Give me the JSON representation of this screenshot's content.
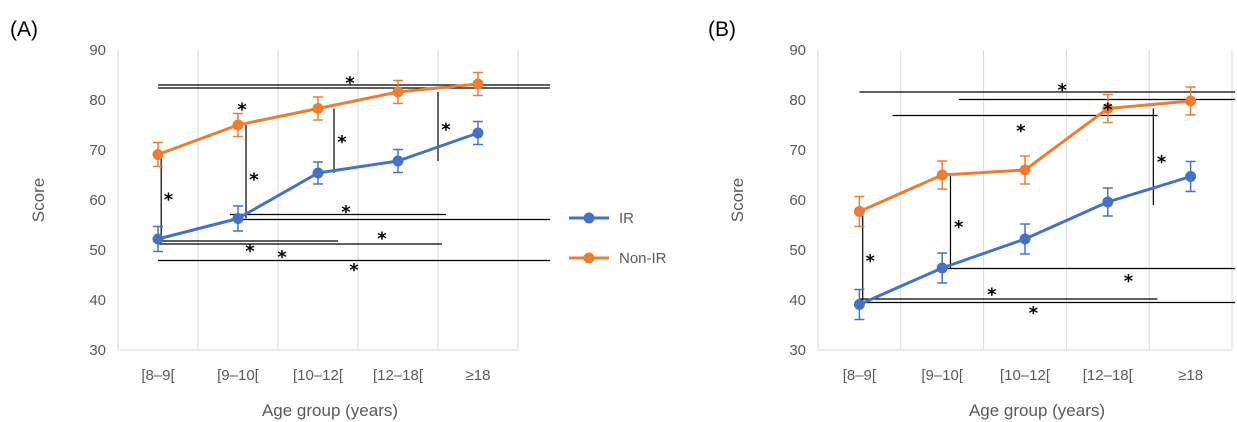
{
  "chart_data": [
    {
      "panel": "(A)",
      "type": "line",
      "categories": [
        "[8–9[",
        "[9–10[",
        "[10–12[",
        "[12–18[",
        "≥18"
      ],
      "xlabel": "Age group (years)",
      "ylabel": "Score",
      "ylim": [
        30,
        90
      ],
      "yticks": [
        30,
        40,
        50,
        60,
        70,
        80,
        90
      ],
      "grid": "vertical",
      "series": [
        {
          "name": "IR",
          "color": "#4472C4",
          "values": [
            52.2,
            56.3,
            65.4,
            67.8,
            73.4
          ],
          "errors": [
            2.5,
            2.5,
            2.2,
            2.3,
            2.3
          ]
        },
        {
          "name": "Non-IR",
          "color": "#ED7D31",
          "values": [
            69.1,
            75.0,
            78.3,
            81.6,
            83.2
          ],
          "errors": [
            2.4,
            2.3,
            2.3,
            2.3,
            2.3
          ]
        }
      ],
      "significance": {
        "marker": "*",
        "horizontal": [
          {
            "y": 83.0,
            "from": 0,
            "to": 4.9
          },
          {
            "y": 82.4,
            "from": 0,
            "to": 4.9
          },
          {
            "y": 57.1,
            "from": 0.9,
            "to": 3.6
          },
          {
            "y": 56.1,
            "from": 1.0,
            "to": 4.9
          },
          {
            "y": 51.8,
            "from": 0,
            "to": 2.25
          },
          {
            "y": 51.2,
            "from": 0,
            "to": 3.55
          },
          {
            "y": 47.9,
            "from": 0,
            "to": 4.9
          }
        ],
        "vertical": [
          {
            "x": 0.04,
            "from": 52.2,
            "to": 69.1
          },
          {
            "x": 1.1,
            "from": 56.3,
            "to": 75.0
          },
          {
            "x": 2.2,
            "from": 65.4,
            "to": 78.3
          },
          {
            "x": 3.5,
            "from": 67.8,
            "to": 81.6
          }
        ],
        "stars": [
          {
            "x": 2.4,
            "y": 83.8
          },
          {
            "x": 1.05,
            "y": 78.5
          },
          {
            "x": 2.3,
            "y": 72.0
          },
          {
            "x": 3.6,
            "y": 74.5
          },
          {
            "x": 0.13,
            "y": 60.5
          },
          {
            "x": 1.2,
            "y": 64.5
          },
          {
            "x": 2.35,
            "y": 58.0
          },
          {
            "x": 2.8,
            "y": 52.7
          },
          {
            "x": 1.15,
            "y": 50.2
          },
          {
            "x": 1.55,
            "y": 49.0
          },
          {
            "x": 2.45,
            "y": 46.4
          }
        ]
      }
    },
    {
      "panel": "(B)",
      "type": "line",
      "categories": [
        "[8–9[",
        "[9–10[",
        "[10–12[",
        "[12–18[",
        "≥18"
      ],
      "xlabel": "Age group (years)",
      "ylabel": "Score",
      "ylim": [
        30,
        90
      ],
      "yticks": [
        30,
        40,
        50,
        60,
        70,
        80,
        90
      ],
      "grid": "vertical",
      "series": [
        {
          "name": "IR",
          "color": "#4472C4",
          "values": [
            39.1,
            46.4,
            52.2,
            59.6,
            64.7
          ],
          "errors": [
            3.0,
            3.0,
            3.0,
            2.8,
            3.0
          ]
        },
        {
          "name": "Non-IR",
          "color": "#ED7D31",
          "values": [
            57.7,
            65.0,
            66.0,
            78.3,
            79.8
          ],
          "errors": [
            3.0,
            2.8,
            2.8,
            2.8,
            2.8
          ]
        }
      ],
      "significance": {
        "marker": "*",
        "horizontal": [
          {
            "y": 81.6,
            "from": 0,
            "to": 4.9
          },
          {
            "y": 80.1,
            "from": 1.2,
            "to": 4.9
          },
          {
            "y": 76.9,
            "from": 0.4,
            "to": 3.6
          },
          {
            "y": 46.3,
            "from": 1.0,
            "to": 4.9
          },
          {
            "y": 40.2,
            "from": 0,
            "to": 3.6
          },
          {
            "y": 39.5,
            "from": 0,
            "to": 4.9
          }
        ],
        "vertical": [
          {
            "x": 0.04,
            "from": 39.1,
            "to": 57.7
          },
          {
            "x": 1.1,
            "from": 46.4,
            "to": 65.0
          },
          {
            "x": 3.55,
            "from": 59.0,
            "to": 78.3
          },
          {
            "x": 4.75,
            "from": 64.0,
            "to": 79.8
          }
        ],
        "stars": [
          {
            "x": 2.45,
            "y": 82.4
          },
          {
            "x": 3.0,
            "y": 78.5
          },
          {
            "x": 1.95,
            "y": 74.2
          },
          {
            "x": 4.83,
            "y": 71.8
          },
          {
            "x": 3.65,
            "y": 68.0
          },
          {
            "x": 0.13,
            "y": 48.2
          },
          {
            "x": 1.2,
            "y": 55.0
          },
          {
            "x": 3.25,
            "y": 44.2
          },
          {
            "x": 1.6,
            "y": 41.5
          },
          {
            "x": 2.1,
            "y": 37.8
          }
        ]
      }
    }
  ],
  "legend": {
    "items": [
      {
        "name": "IR",
        "color": "#4472C4"
      },
      {
        "name": "Non-IR",
        "color": "#ED7D31"
      }
    ]
  }
}
